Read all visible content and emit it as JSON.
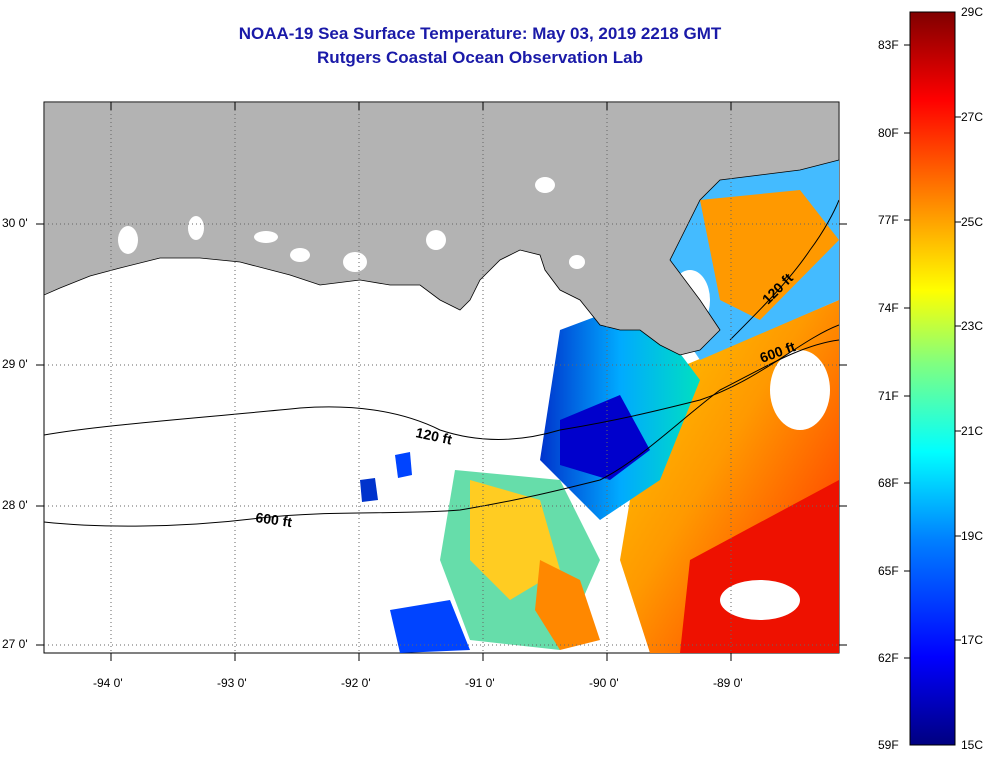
{
  "header": {
    "title": "NOAA-19 Sea Surface Temperature:  May 03, 2019 2218 GMT",
    "subtitle": "Rutgers Coastal Ocean Observation Lab"
  },
  "map": {
    "lon_labels": [
      "-94 0'",
      "-93 0'",
      "-92 0'",
      "-91 0'",
      "-90 0'",
      "-89 0'"
    ],
    "lat_labels": [
      "30 0'",
      "29 0'",
      "28 0'",
      "27 0'"
    ],
    "contours": [
      {
        "label": "120 ft"
      },
      {
        "label": "600 ft"
      },
      {
        "label": "120 ft"
      },
      {
        "label": "600 ft"
      }
    ],
    "colors": {
      "land": "#b3b3b3",
      "no_data": "#ffffff",
      "gridline": "#666666"
    }
  },
  "colorbar": {
    "fahrenheit_labels": [
      "83F",
      "80F",
      "77F",
      "74F",
      "71F",
      "68F",
      "65F",
      "62F",
      "59F"
    ],
    "celsius_labels": [
      "29C",
      "27C",
      "25C",
      "23C",
      "21C",
      "19C",
      "17C",
      "15C"
    ],
    "range_c": [
      15,
      29
    ],
    "colormap": [
      "#000080",
      "#0000ff",
      "#0080ff",
      "#00ffff",
      "#80ff80",
      "#ffff00",
      "#ff8000",
      "#ff0000",
      "#800000"
    ]
  }
}
